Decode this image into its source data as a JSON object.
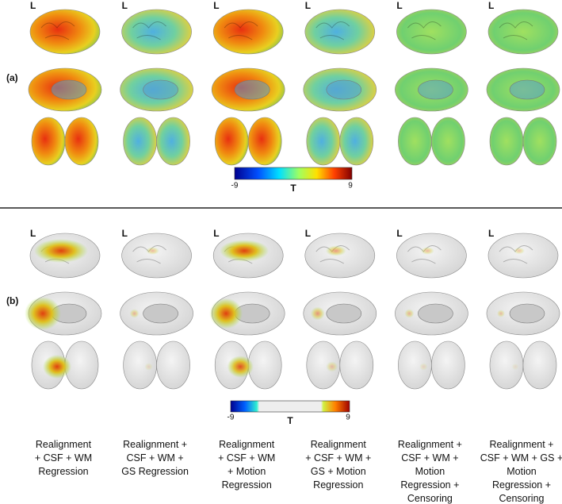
{
  "panel_a": {
    "label": "(a)",
    "side_labels": [
      "L",
      "L",
      "L",
      "L",
      "L",
      "L"
    ],
    "colorbar": {
      "min": -9,
      "max": 9,
      "title": "T"
    }
  },
  "panel_b": {
    "label": "(b)",
    "side_labels": [
      "L",
      "L",
      "L",
      "L",
      "L",
      "L"
    ],
    "colorbar": {
      "min": -9,
      "max": 9,
      "title": "T"
    }
  },
  "captions": [
    [
      "Realignment",
      "+ CSF + WM",
      "Regression"
    ],
    [
      "Realignment +",
      "CSF + WM +",
      "GS Regression"
    ],
    [
      "Realignment",
      "+ CSF + WM",
      "+ Motion",
      "Regression"
    ],
    [
      "Realignment",
      "+ CSF + WM +",
      "GS + Motion",
      "Regression"
    ],
    [
      "Realignment +",
      "CSF + WM +",
      "Motion",
      "Regression +",
      "Censoring"
    ],
    [
      "Realignment +",
      "CSF + WM + GS +",
      "Motion",
      "Regression +",
      "Censoring"
    ]
  ]
}
